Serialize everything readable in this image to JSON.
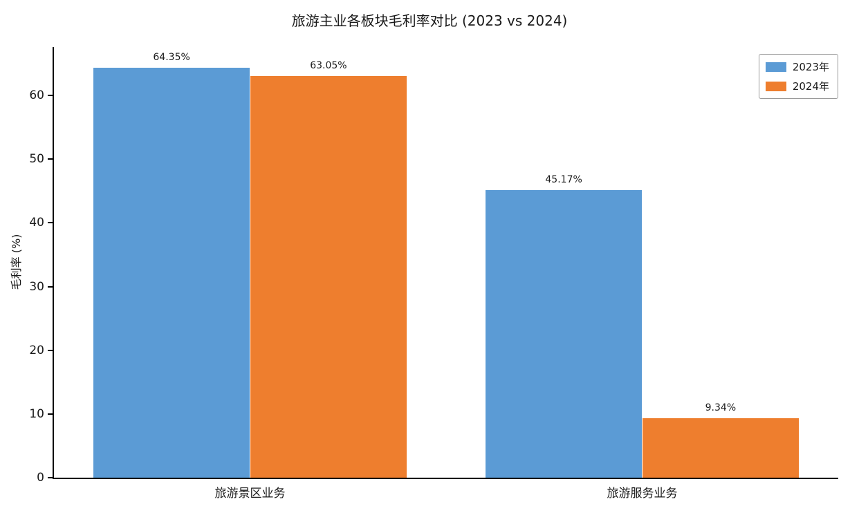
{
  "chart_data": {
    "type": "bar",
    "title": "旅游主业各板块毛利率对比 (2023 vs 2024)",
    "categories": [
      "旅游景区业务",
      "旅游服务业务"
    ],
    "series": [
      {
        "name": "2023年",
        "color": "#5b9bd5",
        "values": [
          64.35,
          45.17
        ],
        "labels": [
          "64.35%",
          "45.17%"
        ]
      },
      {
        "name": "2024年",
        "color": "#ee7e2e",
        "values": [
          63.05,
          9.34
        ],
        "labels": [
          "63.05%",
          "9.34%"
        ]
      }
    ],
    "ylabel": "毛利率 (%)",
    "ylim": [
      0,
      67.6
    ],
    "yticks": [
      0,
      10,
      20,
      30,
      40,
      50,
      60
    ],
    "grid": false,
    "legend_position": "upper right",
    "axis_color": "#000000",
    "text_color": "#1a1a1a"
  }
}
